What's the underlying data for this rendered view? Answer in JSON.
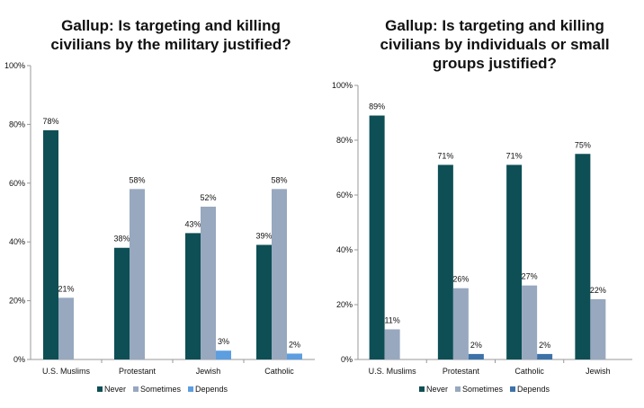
{
  "chart_data": [
    {
      "type": "bar",
      "title": "Gallup: Is targeting and killing civilians by the military justified?",
      "categories": [
        "U.S. Muslims",
        "Protestant",
        "Jewish",
        "Catholic"
      ],
      "series": [
        {
          "name": "Never",
          "color": "#0d4f55",
          "values": [
            78,
            38,
            43,
            39
          ],
          "labels": [
            "78%",
            "38%",
            "43%",
            "39%"
          ]
        },
        {
          "name": "Sometimes",
          "color": "#97a8bf",
          "values": [
            21,
            58,
            52,
            58
          ],
          "labels": [
            "21%",
            "58%",
            "52%",
            "58%"
          ]
        },
        {
          "name": "Depends",
          "color": "#5c9ee0",
          "values": [
            null,
            null,
            3,
            2
          ],
          "labels": [
            "",
            "",
            "3%",
            "2%"
          ]
        }
      ],
      "yticks": [
        "0%",
        "20%",
        "40%",
        "60%",
        "80%",
        "100%"
      ],
      "ylim": [
        0,
        100
      ],
      "legend": "bottom"
    },
    {
      "type": "bar",
      "title": "Gallup: Is targeting and killing civilians by individuals or small groups justified?",
      "categories": [
        "U.S. Muslims",
        "Protestant",
        "Catholic",
        "Jewish"
      ],
      "series": [
        {
          "name": "Never",
          "color": "#0d4f55",
          "values": [
            89,
            71,
            71,
            75
          ],
          "labels": [
            "89%",
            "71%",
            "71%",
            "75%"
          ]
        },
        {
          "name": "Sometimes",
          "color": "#97a8bf",
          "values": [
            11,
            26,
            27,
            22
          ],
          "labels": [
            "11%",
            "26%",
            "27%",
            "22%"
          ]
        },
        {
          "name": "Depends",
          "color": "#3d72a8",
          "values": [
            null,
            2,
            2,
            null
          ],
          "labels": [
            "",
            "2%",
            "2%",
            ""
          ]
        }
      ],
      "yticks": [
        "0%",
        "20%",
        "40%",
        "60%",
        "80%",
        "100%"
      ],
      "ylim": [
        0,
        100
      ],
      "legend": "bottom"
    }
  ]
}
